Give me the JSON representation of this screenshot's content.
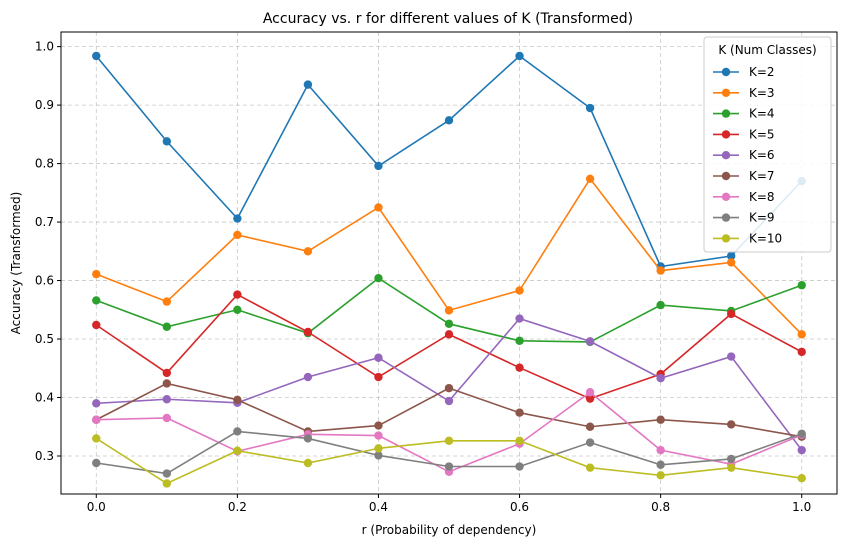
{
  "chart_data": {
    "type": "line",
    "title": "Accuracy vs. r for different values of K (Transformed)",
    "xlabel": "r (Probability of dependency)",
    "ylabel": "Accuracy (Transformed)",
    "xlim": [
      -0.05,
      1.05
    ],
    "ylim": [
      0.235,
      1.025
    ],
    "x": [
      0.0,
      0.1,
      0.2,
      0.3,
      0.4,
      0.5,
      0.6,
      0.7,
      0.8,
      0.9,
      1.0
    ],
    "x_ticks": [
      0.0,
      0.2,
      0.4,
      0.6,
      0.8,
      1.0
    ],
    "x_tick_labels": [
      "0.0",
      "0.2",
      "0.4",
      "0.6",
      "0.8",
      "1.0"
    ],
    "y_ticks": [
      0.3,
      0.4,
      0.5,
      0.6,
      0.7,
      0.8,
      0.9,
      1.0
    ],
    "y_tick_labels": [
      "0.3",
      "0.4",
      "0.5",
      "0.6",
      "0.7",
      "0.8",
      "0.9",
      "1.0"
    ],
    "grid": true,
    "legend": {
      "title": "K (Num Classes)",
      "placement": "top-right"
    },
    "series": [
      {
        "name": "K=2",
        "color": "#1f77b4",
        "values": [
          0.984,
          0.838,
          0.706,
          0.935,
          0.796,
          0.874,
          0.984,
          0.895,
          0.624,
          0.642,
          0.77
        ]
      },
      {
        "name": "K=3",
        "color": "#ff7f0e",
        "values": [
          0.611,
          0.564,
          0.678,
          0.65,
          0.725,
          0.549,
          0.583,
          0.774,
          0.617,
          0.631,
          0.508
        ]
      },
      {
        "name": "K=4",
        "color": "#2ca02c",
        "values": [
          0.566,
          0.521,
          0.55,
          0.51,
          0.604,
          0.526,
          0.497,
          0.495,
          0.558,
          0.548,
          0.592
        ]
      },
      {
        "name": "K=5",
        "color": "#d62728",
        "values": [
          0.524,
          0.442,
          0.576,
          0.512,
          0.435,
          0.508,
          0.451,
          0.398,
          0.44,
          0.543,
          0.478
        ]
      },
      {
        "name": "K=6",
        "color": "#9467bd",
        "values": [
          0.39,
          0.397,
          0.391,
          0.435,
          0.468,
          0.394,
          0.535,
          0.496,
          0.433,
          0.47,
          0.31
        ]
      },
      {
        "name": "K=7",
        "color": "#8c564b",
        "values": [
          0.362,
          0.424,
          0.396,
          0.342,
          0.352,
          0.416,
          0.374,
          0.35,
          0.362,
          0.354,
          0.333
        ]
      },
      {
        "name": "K=8",
        "color": "#e377c2",
        "values": [
          0.362,
          0.365,
          0.308,
          0.337,
          0.335,
          0.273,
          0.321,
          0.409,
          0.31,
          0.286,
          0.336
        ]
      },
      {
        "name": "K=9",
        "color": "#7f7f7f",
        "values": [
          0.288,
          0.27,
          0.342,
          0.33,
          0.301,
          0.282,
          0.282,
          0.323,
          0.285,
          0.295,
          0.338
        ]
      },
      {
        "name": "K=10",
        "color": "#bcbd22",
        "values": [
          0.33,
          0.253,
          0.309,
          0.288,
          0.313,
          0.326,
          0.326,
          0.28,
          0.267,
          0.28,
          0.262
        ]
      }
    ]
  }
}
